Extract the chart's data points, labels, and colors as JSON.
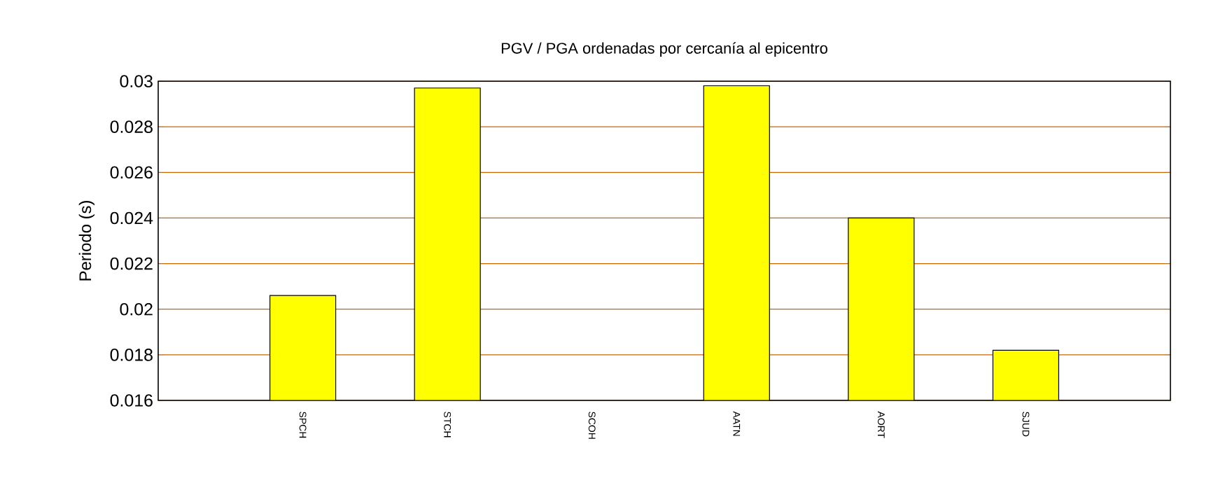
{
  "chart_data": {
    "type": "bar",
    "title": "PGV / PGA ordenadas por cercanía al epicentro",
    "ylabel": "Periodo (s)",
    "categories": [
      "SPCH",
      "STCH",
      "SCOH",
      "AATN",
      "AORT",
      "SJUD"
    ],
    "values": [
      0.0206,
      0.0297,
      null,
      0.0298,
      0.024,
      0.0182
    ],
    "color": "#ffff00",
    "ylim": [
      0.016,
      0.03
    ],
    "yticks": [
      0.016,
      0.018,
      0.02,
      0.022,
      0.024,
      0.026,
      0.028,
      0.03
    ],
    "grid": "y"
  }
}
